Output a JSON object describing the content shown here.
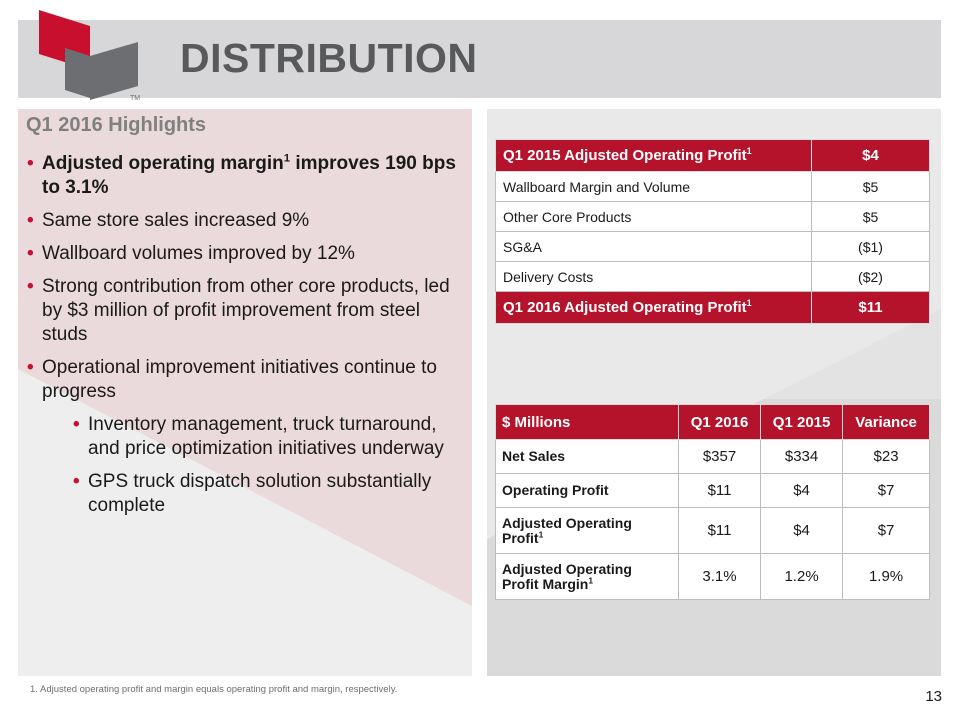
{
  "header": {
    "title": "DISTRIBUTION",
    "logo_trademark": "TM"
  },
  "highlights": {
    "title": "Q1 2016 Highlights",
    "bullets": [
      {
        "text": "Adjusted operating margin",
        "sup": "1",
        "text_after": " improves 190 bps to 3.1%"
      },
      {
        "text": "Same store sales increased 9%"
      },
      {
        "text": "Wallboard volumes improved by 12%"
      },
      {
        "text": "Strong contribution from other core products, led by $3 million of profit improvement from steel studs"
      },
      {
        "text": "Operational improvement initiatives continue to progress"
      }
    ],
    "sub_bullets": [
      {
        "text": "Inventory management, truck turnaround, and price optimization initiatives underway"
      },
      {
        "text": "GPS truck dispatch solution substantially complete"
      }
    ]
  },
  "bridge_table": {
    "header": {
      "label": "Q1 2015 Adjusted Operating Profit",
      "sup": "1",
      "value": "$4"
    },
    "rows": [
      {
        "label": "Wallboard Margin and Volume",
        "value": "$5"
      },
      {
        "label": "Other Core Products",
        "value": "$5"
      },
      {
        "label": "SG&A",
        "value": "($1)"
      },
      {
        "label": "Delivery Costs",
        "value": "($2)"
      }
    ],
    "footer": {
      "label": "Q1 2016 Adjusted Operating Profit",
      "sup": "1",
      "value": "$11"
    }
  },
  "metrics_table": {
    "columns": [
      "$ Millions",
      "Q1 2016",
      "Q1 2015",
      "Variance"
    ],
    "rows": [
      {
        "label": "Net Sales",
        "sup": "",
        "q1_2016": "$357",
        "q1_2015": "$334",
        "variance": "$23"
      },
      {
        "label": "Operating Profit",
        "sup": "",
        "q1_2016": "$11",
        "q1_2015": "$4",
        "variance": "$7"
      },
      {
        "label": "Adjusted Operating Profit",
        "sup": "1",
        "q1_2016": "$11",
        "q1_2015": "$4",
        "variance": "$7"
      },
      {
        "label": "Adjusted Operating Profit Margin",
        "sup": "1",
        "q1_2016": "3.1%",
        "q1_2015": "1.2%",
        "variance": "1.9%"
      }
    ]
  },
  "footnote": "1. Adjusted operating profit and margin equals operating profit and margin, respectively.",
  "page_number": "13",
  "colors": {
    "brand_red": "#c8102e",
    "table_header_red": "#b5132b",
    "title_gray": "#58595b",
    "logo_dark_gray": "#6d6e71"
  }
}
